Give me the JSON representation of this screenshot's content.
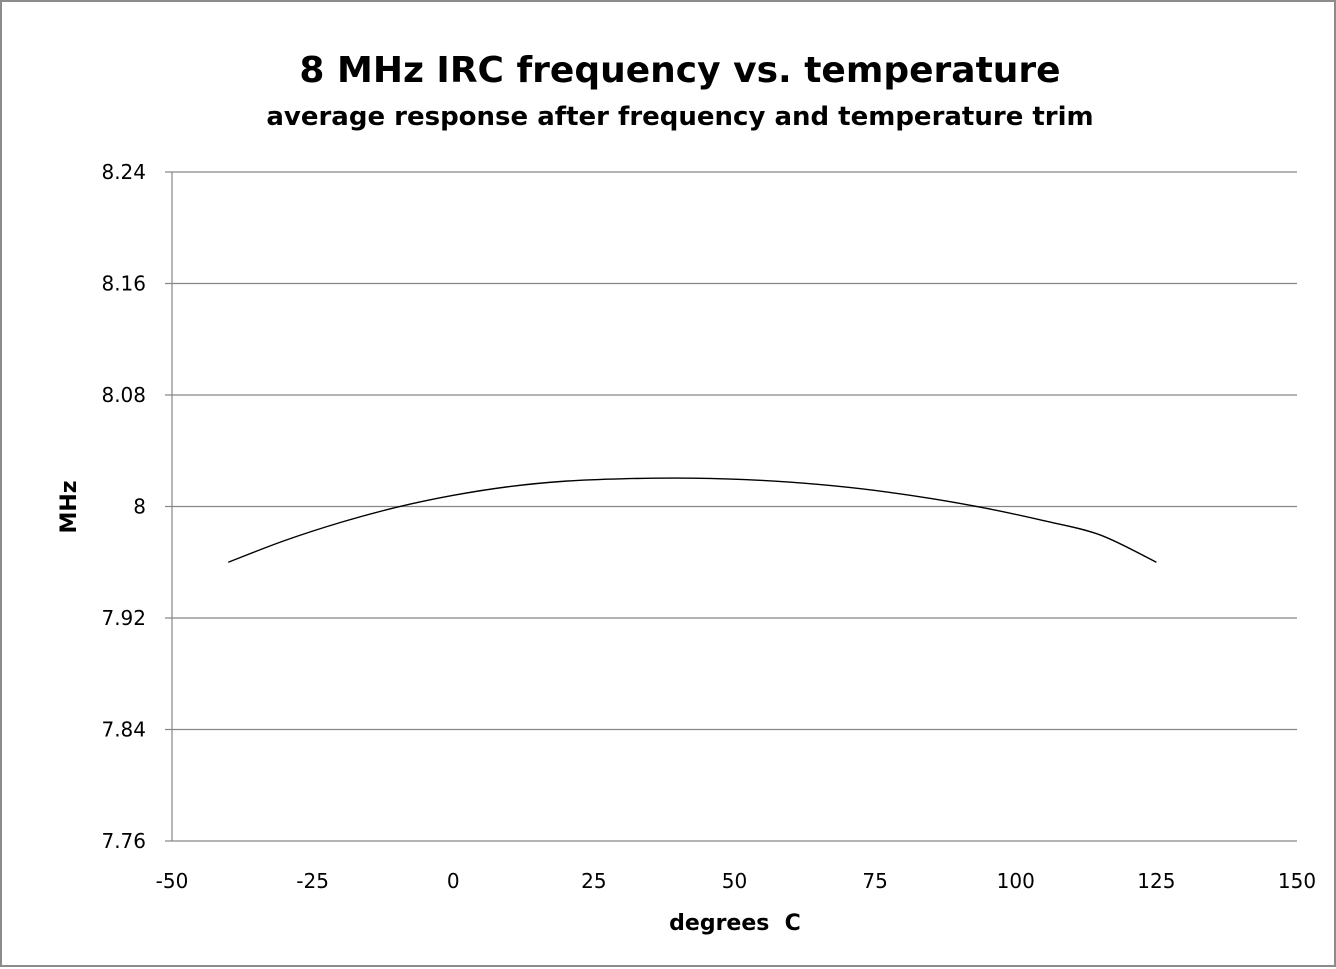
{
  "chart_data": {
    "type": "line",
    "title": "8 MHz IRC frequency vs. temperature",
    "subtitle": "average response after frequency and temperature trim",
    "xlabel": "degrees  C",
    "ylabel": "MHz",
    "xlim": [
      -50,
      150
    ],
    "ylim": [
      7.76,
      8.24
    ],
    "x_ticks": [
      "-50",
      "-25",
      "0",
      "25",
      "50",
      "75",
      "100",
      "125",
      "150"
    ],
    "x_tick_values": [
      -50,
      -25,
      0,
      25,
      50,
      75,
      100,
      125,
      150
    ],
    "y_ticks": [
      "8.24",
      "8.16",
      "8.08",
      "8",
      "7.92",
      "7.84",
      "7.76"
    ],
    "y_tick_values": [
      8.24,
      8.16,
      8.08,
      8,
      7.92,
      7.84,
      7.76
    ],
    "grid": "horizontal",
    "series": [
      {
        "color": "#000000",
        "x": [
          -40,
          -30,
          -20,
          -10,
          0,
          10,
          20,
          30,
          42.5,
          55,
          65,
          75,
          85,
          95,
          105,
          115,
          125
        ],
        "y": [
          7.96,
          7.9755,
          7.9886,
          7.9995,
          8.008,
          8.0143,
          8.0182,
          8.0199,
          8.0203,
          8.0187,
          8.0158,
          8.0115,
          8.0057,
          7.9985,
          7.9898,
          7.9796,
          7.96
        ]
      }
    ]
  }
}
